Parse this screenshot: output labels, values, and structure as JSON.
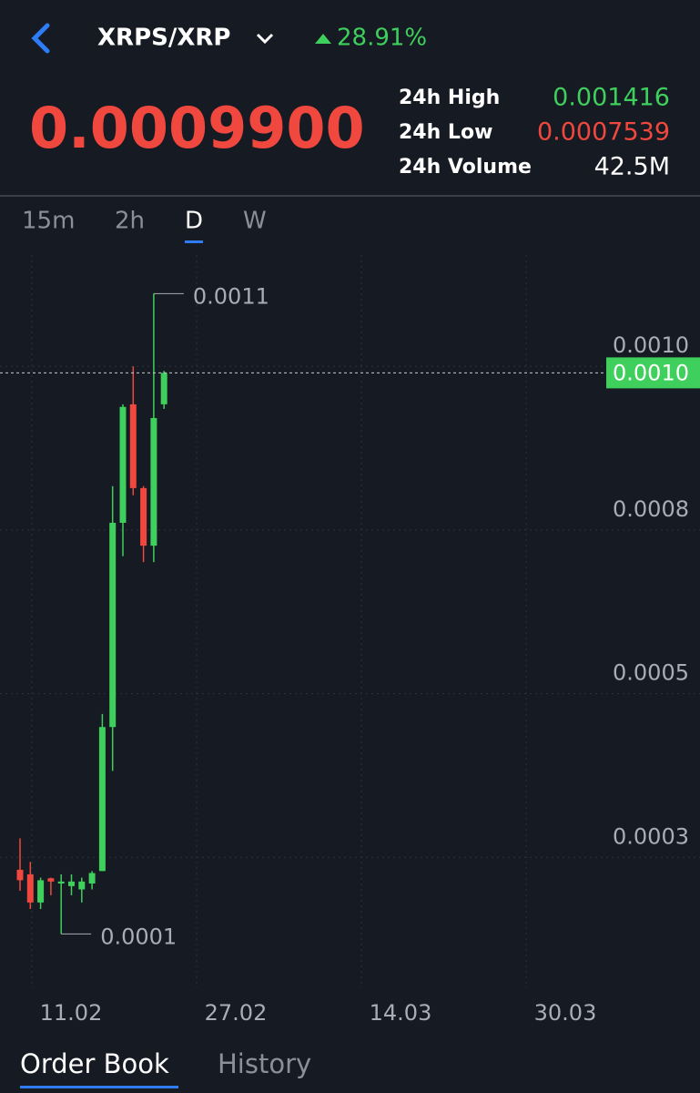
{
  "header": {
    "pair": "XRPS/XRP",
    "change": "28.91%",
    "price": "0.0009900",
    "stats": [
      {
        "label": "24h High",
        "value": "0.001416"
      },
      {
        "label": "24h Low",
        "value": "0.0007539"
      },
      {
        "label": "24h Volume",
        "value": "42.5M"
      }
    ]
  },
  "timeframes": [
    "15m",
    "2h",
    "D",
    "W"
  ],
  "active_timeframe": 2,
  "chart_data": {
    "type": "candlestick",
    "open": [
      0.000231,
      0.000224,
      0.000181,
      0.000218,
      0.00021,
      0.000206,
      0.000201,
      0.00021,
      0.000229,
      0.000449,
      0.000761,
      0.000942,
      0.000814,
      0.000726,
      0.000942
    ],
    "high": [
      0.000279,
      0.000243,
      0.000219,
      0.000219,
      0.000224,
      0.000224,
      0.000219,
      0.000229,
      0.000469,
      0.000817,
      0.000942,
      0.001,
      0.000817,
      0.001111,
      0.000993
    ],
    "low": [
      0.000199,
      0.000171,
      0.000171,
      0.000192,
      0.000133,
      0.000192,
      0.000181,
      0.000201,
      0.000229,
      0.000382,
      0.00071,
      0.000803,
      0.000701,
      0.000701,
      0.000935
    ],
    "close": [
      0.000215,
      0.000181,
      0.000215,
      0.000213,
      0.000213,
      0.000213,
      0.000213,
      0.000226,
      0.000449,
      0.000761,
      0.000938,
      0.000814,
      0.000726,
      0.000921,
      0.00099
    ],
    "ylim": [
      5e-05,
      0.00117
    ],
    "yticks": [
      {
        "value": 0.00025,
        "label": "0.0003"
      },
      {
        "value": 0.0005,
        "label": "0.0005"
      },
      {
        "value": 0.00075,
        "label": "0.0008"
      },
      {
        "value": 0.001,
        "label": "0.0010"
      }
    ],
    "x_labels": [
      "11.02",
      "27.02",
      "14.03",
      "30.03"
    ],
    "max_label": "0.0011",
    "min_label": "0.0001",
    "current_price": {
      "value": 0.00099,
      "label": "0.0010"
    },
    "up_color": "#3ecf5c",
    "down_color": "#f0483e"
  },
  "tabs": [
    "Order Book",
    "History"
  ]
}
